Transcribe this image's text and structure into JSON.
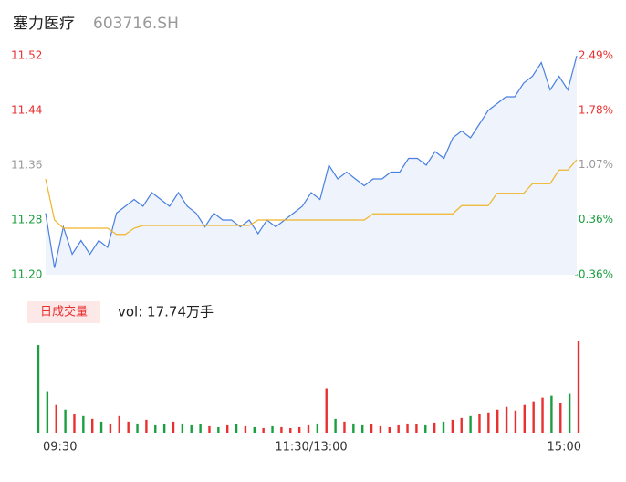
{
  "chart_data": [
    {
      "type": "line",
      "title": "塞力医疗",
      "subtitle": "603716.SH",
      "categories": [
        "09:30",
        null,
        null,
        null,
        null,
        null,
        null,
        null,
        null,
        null,
        null,
        null,
        null,
        null,
        null,
        null,
        null,
        null,
        null,
        null,
        null,
        null,
        null,
        null,
        null,
        null,
        null,
        null,
        null,
        null,
        "11:30/13:00",
        null,
        null,
        null,
        null,
        null,
        null,
        null,
        null,
        null,
        null,
        null,
        null,
        null,
        null,
        null,
        null,
        null,
        null,
        null,
        null,
        null,
        null,
        null,
        null,
        null,
        null,
        null,
        null,
        null,
        "15:00"
      ],
      "series": [
        {
          "name": "price",
          "color": "#4a80e0",
          "values": [
            11.29,
            11.21,
            11.27,
            11.23,
            11.25,
            11.23,
            11.25,
            11.24,
            11.29,
            11.3,
            11.31,
            11.3,
            11.32,
            11.31,
            11.3,
            11.32,
            11.3,
            11.29,
            11.27,
            11.29,
            11.28,
            11.28,
            11.27,
            11.28,
            11.26,
            11.28,
            11.27,
            11.28,
            11.29,
            11.3,
            11.32,
            11.31,
            11.36,
            11.34,
            11.35,
            11.34,
            11.33,
            11.34,
            11.34,
            11.35,
            11.35,
            11.37,
            11.37,
            11.36,
            11.38,
            11.37,
            11.4,
            11.41,
            11.4,
            11.42,
            11.44,
            11.45,
            11.46,
            11.46,
            11.48,
            11.49,
            11.51,
            11.47,
            11.49,
            11.47,
            11.52
          ]
        },
        {
          "name": "average",
          "color": "#f0b429",
          "values": [
            11.34,
            11.28,
            11.268,
            11.268,
            11.268,
            11.268,
            11.268,
            11.268,
            11.259,
            11.259,
            11.268,
            11.272,
            11.272,
            11.272,
            11.272,
            11.272,
            11.272,
            11.272,
            11.272,
            11.272,
            11.272,
            11.272,
            11.272,
            11.272,
            11.28,
            11.28,
            11.28,
            11.28,
            11.28,
            11.28,
            11.28,
            11.28,
            11.28,
            11.28,
            11.28,
            11.28,
            11.28,
            11.289,
            11.289,
            11.289,
            11.289,
            11.289,
            11.289,
            11.289,
            11.289,
            11.289,
            11.289,
            11.301,
            11.301,
            11.301,
            11.301,
            11.319,
            11.319,
            11.319,
            11.319,
            11.333,
            11.333,
            11.333,
            11.353,
            11.353,
            11.368
          ]
        }
      ],
      "area_color": "#eef3fc",
      "ylim": [
        11.2,
        11.52
      ],
      "yticks": [
        11.52,
        11.44,
        11.36,
        11.28,
        {
          "value": 11.2,
          "label": "11.20"
        }
      ],
      "y2lim": [
        -0.36,
        2.49
      ],
      "y2ticks": [
        {
          "value": 2.49,
          "label": "2.49%"
        },
        {
          "value": 1.78,
          "label": "1.78%"
        },
        {
          "value": 1.07,
          "label": "1.07%"
        },
        {
          "value": 0.36,
          "label": "0.36%"
        },
        {
          "value": -0.36,
          "label": "-0.36%"
        }
      ],
      "tick_colors": [
        "#e93030",
        "#e93030",
        "#999999",
        "#1a9e3f",
        "#1a9e3f"
      ]
    },
    {
      "type": "bar",
      "title": "日成交量",
      "annotation": "vol: 17.74万手",
      "values": [
        95,
        45,
        30,
        25,
        20,
        18,
        15,
        12,
        10,
        18,
        12,
        10,
        14,
        8,
        9,
        12,
        10,
        8,
        9,
        7,
        6,
        8,
        9,
        7,
        6,
        5,
        7,
        6,
        5,
        6,
        8,
        10,
        48,
        15,
        12,
        10,
        8,
        9,
        7,
        6,
        8,
        10,
        9,
        8,
        11,
        12,
        14,
        16,
        18,
        20,
        22,
        25,
        28,
        24,
        30,
        34,
        38,
        40,
        32,
        42,
        100
      ],
      "ylim": [
        0,
        100
      ],
      "up_color": "#e93030",
      "down_color": "#1a9e3f",
      "label_bg": "#fde8e8"
    }
  ]
}
